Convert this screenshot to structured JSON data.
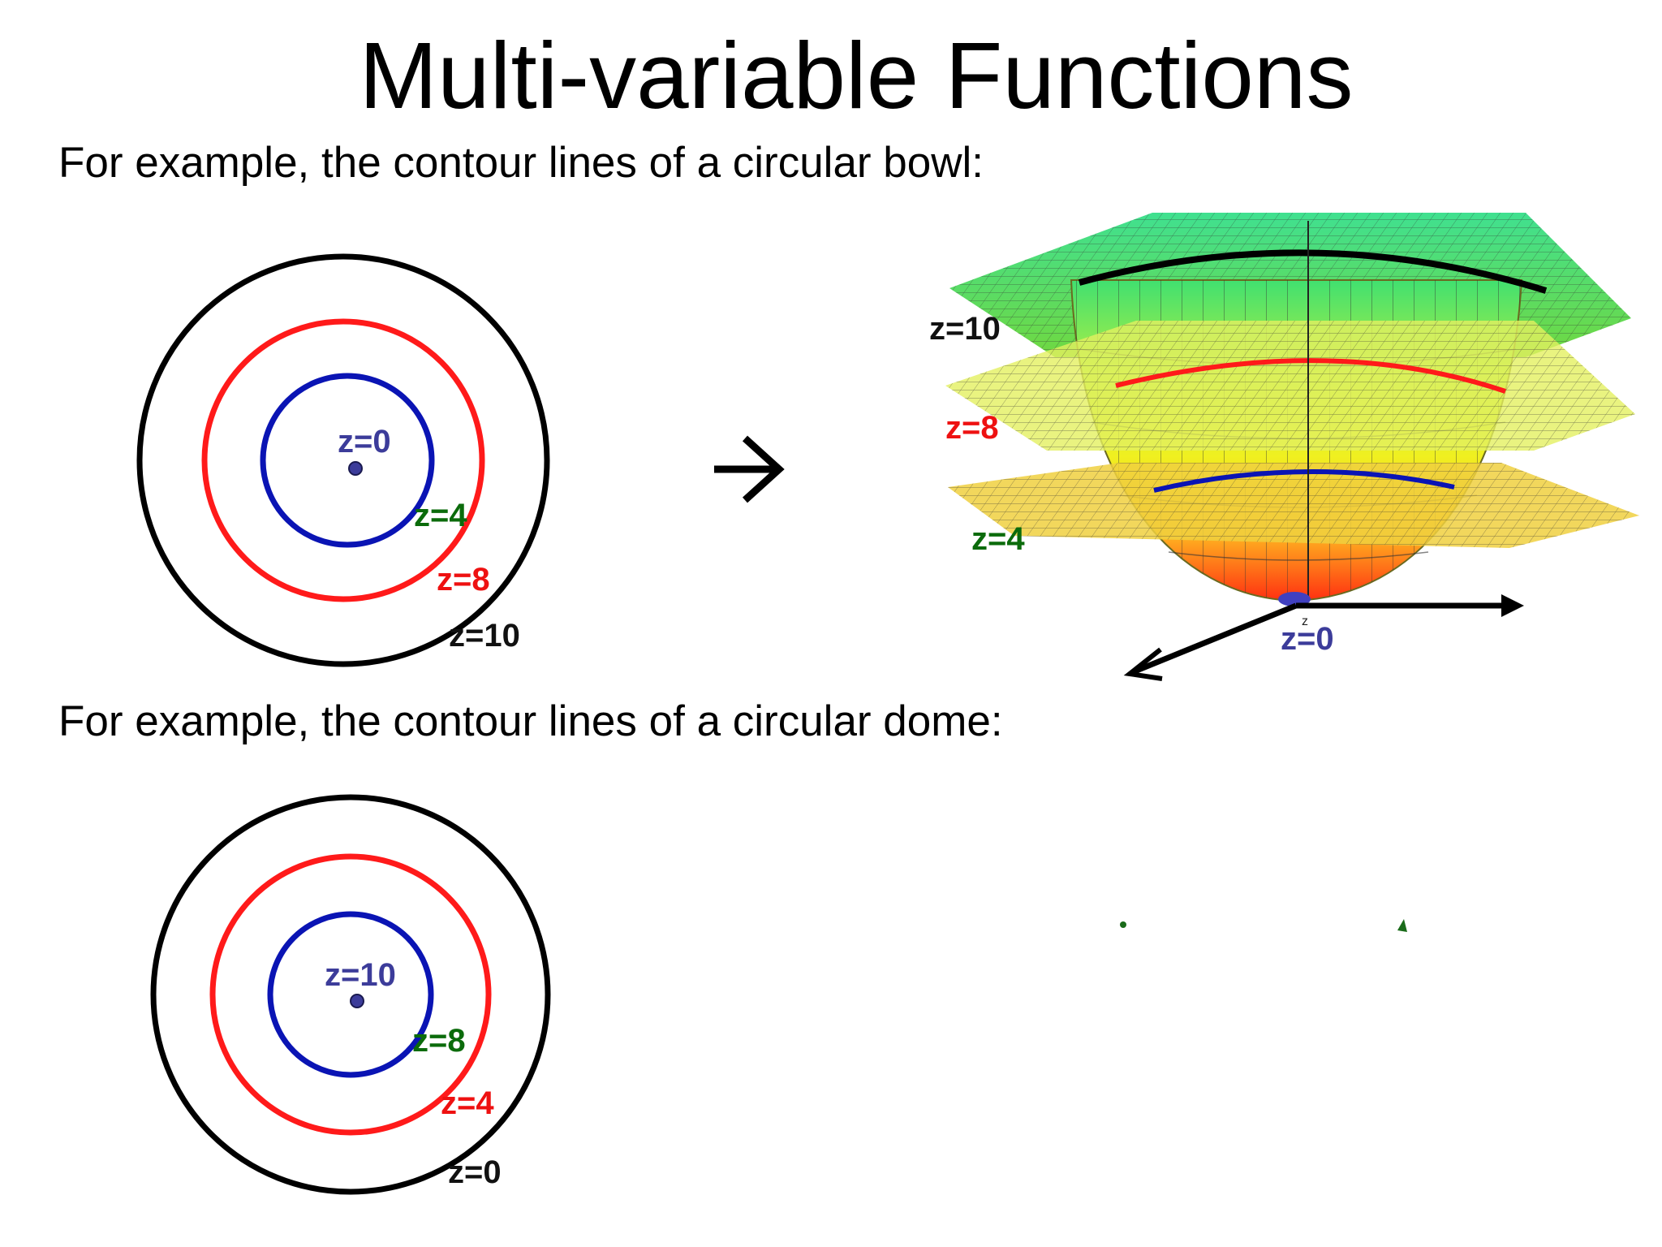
{
  "title": "Multi-variable Functions",
  "captions": {
    "bowl": "For example, the contour lines of a circular bowl:",
    "dome": "For example, the contour lines of a circular dome:"
  },
  "colors": {
    "outer": "#000000",
    "middle": "#ff1a1a",
    "inner": "#0a14b4",
    "label_inner": "#3c3c9a",
    "label_green": "#0b6b0b",
    "label_red": "#ee1111",
    "label_black": "#111111"
  },
  "bowl_contours": {
    "inner": "z=0",
    "inner_ring": "z=4",
    "middle_ring": "z=8",
    "outer_ring": "z=10"
  },
  "bowl_3d": {
    "top_plane": "z=10",
    "mid_plane": "z=8",
    "low_plane": "z=4",
    "bottom": "z=0",
    "axis_letter": "z"
  },
  "arrow_glyph": "→",
  "dome_contours": {
    "inner": "z=10",
    "inner_ring": "z=8",
    "middle_ring": "z=4",
    "outer_ring": "z=0"
  }
}
